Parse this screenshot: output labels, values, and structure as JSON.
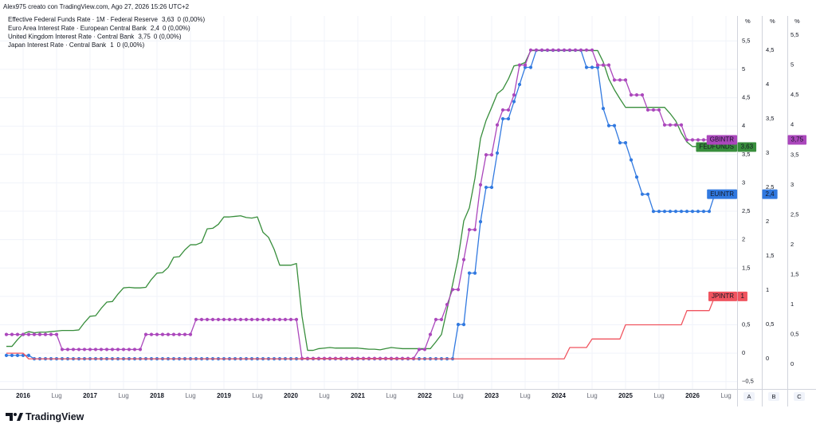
{
  "header": "Alex975 creato con TradingView.com, Ago 27, 2026 15:26 UTC+2",
  "footer": "TradingView",
  "axis_units": [
    "%",
    "%",
    "%"
  ],
  "axis_names": [
    "A",
    "B",
    "C"
  ],
  "chart_data": {
    "type": "line",
    "x": [
      "2015-10",
      "2015-11",
      "2015-12",
      "2016-01",
      "2016-02",
      "2016-03",
      "2016-04",
      "2016-05",
      "2016-06",
      "2016-07",
      "2016-08",
      "2016-09",
      "2016-10",
      "2016-11",
      "2016-12",
      "2017-01",
      "2017-02",
      "2017-03",
      "2017-04",
      "2017-05",
      "2017-06",
      "2017-07",
      "2017-08",
      "2017-09",
      "2017-10",
      "2017-11",
      "2017-12",
      "2018-01",
      "2018-02",
      "2018-03",
      "2018-04",
      "2018-05",
      "2018-06",
      "2018-07",
      "2018-08",
      "2018-09",
      "2018-10",
      "2018-11",
      "2018-12",
      "2019-01",
      "2019-02",
      "2019-03",
      "2019-04",
      "2019-05",
      "2019-06",
      "2019-07",
      "2019-08",
      "2019-09",
      "2019-10",
      "2019-11",
      "2019-12",
      "2020-01",
      "2020-02",
      "2020-03",
      "2020-04",
      "2020-05",
      "2020-06",
      "2020-07",
      "2020-08",
      "2020-09",
      "2020-10",
      "2020-11",
      "2020-12",
      "2021-01",
      "2021-02",
      "2021-03",
      "2021-04",
      "2021-05",
      "2021-06",
      "2021-07",
      "2021-08",
      "2021-09",
      "2021-10",
      "2021-11",
      "2021-12",
      "2022-01",
      "2022-02",
      "2022-03",
      "2022-04",
      "2022-05",
      "2022-06",
      "2022-07",
      "2022-08",
      "2022-09",
      "2022-10",
      "2022-11",
      "2022-12",
      "2023-01",
      "2023-02",
      "2023-03",
      "2023-04",
      "2023-05",
      "2023-06",
      "2023-07",
      "2023-08",
      "2023-09",
      "2023-10",
      "2023-11",
      "2023-12",
      "2024-01",
      "2024-02",
      "2024-03",
      "2024-04",
      "2024-05",
      "2024-06",
      "2024-07",
      "2024-08",
      "2024-09",
      "2024-10",
      "2024-11",
      "2024-12",
      "2025-01",
      "2025-02",
      "2025-03",
      "2025-04",
      "2025-05",
      "2025-06",
      "2025-07",
      "2025-08",
      "2025-09",
      "2025-10",
      "2025-11",
      "2025-12",
      "2026-01",
      "2026-02",
      "2026-03",
      "2026-04",
      "2026-05",
      "2026-06"
    ],
    "series": [
      {
        "name": "Effective Federal Funds Rate · 1M · Federal Reserve",
        "symbol": "FEDFUNDS",
        "color": "#388e3c",
        "last_label": "3,63",
        "change_label": "0 (0,00%)",
        "markers": false,
        "values": [
          0.12,
          0.12,
          0.24,
          0.34,
          0.38,
          0.36,
          0.37,
          0.37,
          0.38,
          0.39,
          0.4,
          0.4,
          0.4,
          0.41,
          0.54,
          0.65,
          0.66,
          0.79,
          0.9,
          0.91,
          1.04,
          1.15,
          1.16,
          1.15,
          1.15,
          1.16,
          1.3,
          1.41,
          1.42,
          1.51,
          1.69,
          1.7,
          1.82,
          1.91,
          1.91,
          1.95,
          2.19,
          2.2,
          2.27,
          2.4,
          2.4,
          2.41,
          2.42,
          2.39,
          2.38,
          2.4,
          2.13,
          2.04,
          1.83,
          1.55,
          1.55,
          1.55,
          1.58,
          0.65,
          0.05,
          0.05,
          0.08,
          0.09,
          0.1,
          0.09,
          0.09,
          0.09,
          0.09,
          0.09,
          0.08,
          0.07,
          0.07,
          0.06,
          0.08,
          0.1,
          0.09,
          0.08,
          0.08,
          0.08,
          0.08,
          0.08,
          0.08,
          0.2,
          0.33,
          0.77,
          1.21,
          1.68,
          2.33,
          2.56,
          3.08,
          3.78,
          4.1,
          4.33,
          4.57,
          4.65,
          4.83,
          5.06,
          5.08,
          5.12,
          5.33,
          5.33,
          5.33,
          5.33,
          5.33,
          5.33,
          5.33,
          5.33,
          5.33,
          5.33,
          5.33,
          5.33,
          5.33,
          5.13,
          4.83,
          4.64,
          4.48,
          4.33,
          4.33,
          4.33,
          4.33,
          4.33,
          4.33,
          4.33,
          4.33,
          4.22,
          4.09,
          3.88,
          3.72,
          3.64,
          3.64,
          3.63,
          3.63,
          3.63,
          3.63
        ]
      },
      {
        "name": "Euro Area Interest Rate · European Central Bank",
        "symbol": "EUINTR",
        "color": "#3179e0",
        "last_label": "2,4",
        "change_label": "0 (0,00%)",
        "markers": true,
        "axis": "y2",
        "values": [
          0.05,
          0.05,
          0.05,
          0.05,
          0.05,
          0,
          0,
          0,
          0,
          0,
          0,
          0,
          0,
          0,
          0,
          0,
          0,
          0,
          0,
          0,
          0,
          0,
          0,
          0,
          0,
          0,
          0,
          0,
          0,
          0,
          0,
          0,
          0,
          0,
          0,
          0,
          0,
          0,
          0,
          0,
          0,
          0,
          0,
          0,
          0,
          0,
          0,
          0,
          0,
          0,
          0,
          0,
          0,
          0,
          0,
          0,
          0,
          0,
          0,
          0,
          0,
          0,
          0,
          0,
          0,
          0,
          0,
          0,
          0,
          0,
          0,
          0,
          0,
          0,
          0,
          0,
          0,
          0,
          0,
          0,
          0,
          0.5,
          0.5,
          1.25,
          1.25,
          2,
          2.5,
          2.5,
          3,
          3.5,
          3.5,
          3.75,
          4,
          4.25,
          4.25,
          4.5,
          4.5,
          4.5,
          4.5,
          4.5,
          4.5,
          4.5,
          4.5,
          4.5,
          4.25,
          4.25,
          4.25,
          3.65,
          3.4,
          3.4,
          3.15,
          3.15,
          2.9,
          2.65,
          2.4,
          2.4,
          2.15,
          2.15,
          2.15,
          2.15,
          2.15,
          2.15,
          2.15,
          2.15,
          2.15,
          2.15,
          2.15,
          2.4,
          2.4
        ]
      },
      {
        "name": "United Kingdom Interest Rate · Central Bank",
        "symbol": "GBINTR",
        "color": "#ab47bc",
        "last_label": "3,75",
        "change_label": "0 (0,00%)",
        "markers": true,
        "axis": "y3",
        "values": [
          0.5,
          0.5,
          0.5,
          0.5,
          0.5,
          0.5,
          0.5,
          0.5,
          0.5,
          0.5,
          0.25,
          0.25,
          0.25,
          0.25,
          0.25,
          0.25,
          0.25,
          0.25,
          0.25,
          0.25,
          0.25,
          0.25,
          0.25,
          0.25,
          0.25,
          0.5,
          0.5,
          0.5,
          0.5,
          0.5,
          0.5,
          0.5,
          0.5,
          0.5,
          0.75,
          0.75,
          0.75,
          0.75,
          0.75,
          0.75,
          0.75,
          0.75,
          0.75,
          0.75,
          0.75,
          0.75,
          0.75,
          0.75,
          0.75,
          0.75,
          0.75,
          0.75,
          0.75,
          0.1,
          0.1,
          0.1,
          0.1,
          0.1,
          0.1,
          0.1,
          0.1,
          0.1,
          0.1,
          0.1,
          0.1,
          0.1,
          0.1,
          0.1,
          0.1,
          0.1,
          0.1,
          0.1,
          0.1,
          0.1,
          0.25,
          0.25,
          0.5,
          0.75,
          0.75,
          1,
          1.25,
          1.25,
          1.75,
          2.25,
          2.25,
          3,
          3.5,
          3.5,
          4,
          4.25,
          4.25,
          4.5,
          5,
          5,
          5.25,
          5.25,
          5.25,
          5.25,
          5.25,
          5.25,
          5.25,
          5.25,
          5.25,
          5.25,
          5.25,
          5.25,
          5,
          5,
          5,
          4.75,
          4.75,
          4.75,
          4.5,
          4.5,
          4.5,
          4.25,
          4.25,
          4.25,
          4,
          4,
          4,
          4,
          3.75,
          3.75,
          3.75,
          3.75,
          3.75,
          3.75,
          3.75
        ]
      },
      {
        "name": "Japan Interest Rate · Central Bank",
        "symbol": "JPINTR",
        "color": "#f0545f",
        "last_label": "1",
        "change_label": "0 (0,00%)",
        "markers": false,
        "values": [
          0,
          0,
          0,
          0,
          -0.1,
          -0.1,
          -0.1,
          -0.1,
          -0.1,
          -0.1,
          -0.1,
          -0.1,
          -0.1,
          -0.1,
          -0.1,
          -0.1,
          -0.1,
          -0.1,
          -0.1,
          -0.1,
          -0.1,
          -0.1,
          -0.1,
          -0.1,
          -0.1,
          -0.1,
          -0.1,
          -0.1,
          -0.1,
          -0.1,
          -0.1,
          -0.1,
          -0.1,
          -0.1,
          -0.1,
          -0.1,
          -0.1,
          -0.1,
          -0.1,
          -0.1,
          -0.1,
          -0.1,
          -0.1,
          -0.1,
          -0.1,
          -0.1,
          -0.1,
          -0.1,
          -0.1,
          -0.1,
          -0.1,
          -0.1,
          -0.1,
          -0.1,
          -0.1,
          -0.1,
          -0.1,
          -0.1,
          -0.1,
          -0.1,
          -0.1,
          -0.1,
          -0.1,
          -0.1,
          -0.1,
          -0.1,
          -0.1,
          -0.1,
          -0.1,
          -0.1,
          -0.1,
          -0.1,
          -0.1,
          -0.1,
          -0.1,
          -0.1,
          -0.1,
          -0.1,
          -0.1,
          -0.1,
          -0.1,
          -0.1,
          -0.1,
          -0.1,
          -0.1,
          -0.1,
          -0.1,
          -0.1,
          -0.1,
          -0.1,
          -0.1,
          -0.1,
          -0.1,
          -0.1,
          -0.1,
          -0.1,
          -0.1,
          -0.1,
          -0.1,
          -0.1,
          -0.1,
          0.1,
          0.1,
          0.1,
          0.1,
          0.25,
          0.25,
          0.25,
          0.25,
          0.25,
          0.25,
          0.5,
          0.5,
          0.5,
          0.5,
          0.5,
          0.5,
          0.5,
          0.5,
          0.5,
          0.5,
          0.5,
          0.75,
          0.75,
          0.75,
          0.75,
          0.75,
          1,
          1
        ]
      }
    ],
    "xticks": [
      {
        "value": "2016-01",
        "label": "2016"
      },
      {
        "value": "2016-07",
        "label": "Lug"
      },
      {
        "value": "2017-01",
        "label": "2017"
      },
      {
        "value": "2017-07",
        "label": "Lug"
      },
      {
        "value": "2018-01",
        "label": "2018"
      },
      {
        "value": "2018-07",
        "label": "Lug"
      },
      {
        "value": "2019-01",
        "label": "2019"
      },
      {
        "value": "2019-07",
        "label": "Lug"
      },
      {
        "value": "2020-01",
        "label": "2020"
      },
      {
        "value": "2020-07",
        "label": "Lug"
      },
      {
        "value": "2021-01",
        "label": "2021"
      },
      {
        "value": "2021-07",
        "label": "Lug"
      },
      {
        "value": "2022-01",
        "label": "2022"
      },
      {
        "value": "2022-07",
        "label": "Lug"
      },
      {
        "value": "2023-01",
        "label": "2023"
      },
      {
        "value": "2023-07",
        "label": "Lug"
      },
      {
        "value": "2024-01",
        "label": "2024"
      },
      {
        "value": "2024-07",
        "label": "Lug"
      },
      {
        "value": "2025-01",
        "label": "2025"
      },
      {
        "value": "2025-07",
        "label": "Lug"
      },
      {
        "value": "2026-01",
        "label": "2026"
      },
      {
        "value": "2026-07",
        "label": "Lug"
      }
    ],
    "ylim": [
      -0.63,
      5.94
    ],
    "yticks": [
      {
        "value": -0.5,
        "label": "−0,5"
      },
      0,
      {
        "value": 0.5,
        "label": "0,5"
      },
      1,
      {
        "value": 1.5,
        "label": "1,5"
      },
      2,
      {
        "value": 2.5,
        "label": "2,5"
      },
      3,
      {
        "value": 3.5,
        "label": "3,5"
      },
      4,
      {
        "value": 4.5,
        "label": "4,5"
      },
      5,
      {
        "value": 5.5,
        "label": "5,5"
      }
    ],
    "y2lim": [
      -0.44,
      5
    ],
    "y2ticks": [
      0,
      {
        "value": 0.5,
        "label": "0,5"
      },
      1,
      {
        "value": 1.5,
        "label": "1,5"
      },
      2,
      {
        "value": 2.5,
        "label": "2,5"
      },
      3,
      {
        "value": 3.5,
        "label": "3,5"
      },
      4,
      {
        "value": 4.5,
        "label": "4,5"
      }
    ],
    "y3lim": [
      -0.41,
      5.82
    ],
    "y3ticks": [
      0,
      {
        "value": 0.5,
        "label": "0,5"
      },
      1,
      {
        "value": 1.5,
        "label": "1,5"
      },
      2,
      {
        "value": 2.5,
        "label": "2,5"
      },
      3,
      {
        "value": 3.5,
        "label": "3,5"
      },
      4,
      {
        "value": 4.5,
        "label": "4,5"
      },
      5,
      {
        "value": 5.5,
        "label": "5,5"
      }
    ],
    "grid": true
  }
}
